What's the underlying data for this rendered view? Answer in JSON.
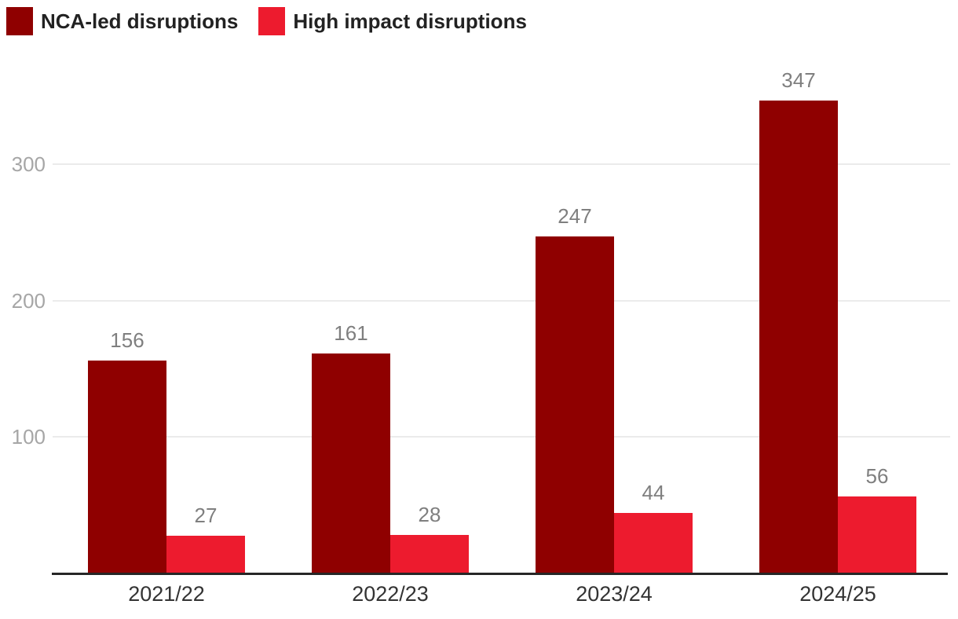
{
  "chart_data": {
    "type": "bar",
    "categories": [
      "2021/22",
      "2022/23",
      "2023/24",
      "2024/25"
    ],
    "series": [
      {
        "name": "NCA-led disruptions",
        "color": "#8F0000",
        "values": [
          156,
          161,
          247,
          347
        ]
      },
      {
        "name": "High impact disruptions",
        "color": "#ED1B2E",
        "values": [
          27,
          28,
          44,
          56
        ]
      }
    ],
    "yticks": [
      100,
      200,
      300
    ],
    "ylim": [
      0,
      380
    ],
    "grid": "horizontal",
    "legend_position": "top-left",
    "value_labels": true,
    "colors": {
      "grid": "#EBEBEB",
      "axis_line": "#262626",
      "ytick_label": "#A6A6A6",
      "xtick_label": "#333333",
      "value_label": "#7F7F7F",
      "legend_text": "#222222",
      "background": "#FFFFFF"
    }
  }
}
